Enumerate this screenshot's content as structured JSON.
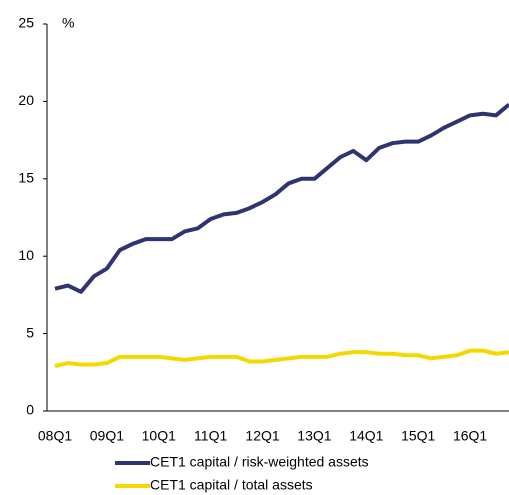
{
  "chart_data": {
    "type": "line",
    "unit": "%",
    "categories": [
      "08Q1",
      null,
      null,
      null,
      "09Q1",
      null,
      null,
      null,
      "10Q1",
      null,
      null,
      null,
      "11Q1",
      null,
      null,
      null,
      "12Q1",
      null,
      null,
      null,
      "13Q1",
      null,
      null,
      null,
      "14Q1",
      null,
      null,
      null,
      "15Q1",
      null,
      null,
      null,
      "16Q1",
      null,
      null,
      null
    ],
    "series": [
      {
        "name": "CET1 capital / risk-weighted assets",
        "color": "#2e3470",
        "values": [
          7.9,
          8.1,
          7.7,
          8.7,
          9.2,
          10.4,
          10.8,
          11.1,
          11.1,
          11.1,
          11.6,
          11.8,
          12.4,
          12.7,
          12.8,
          13.1,
          13.5,
          14.0,
          14.7,
          15.0,
          15.0,
          15.7,
          16.4,
          16.8,
          16.2,
          17.0,
          17.3,
          17.4,
          17.4,
          17.8,
          18.3,
          18.7,
          19.1,
          19.2,
          19.1,
          19.8
        ]
      },
      {
        "name": "CET1 capital / total assets",
        "color": "#f5d800",
        "values": [
          2.9,
          3.1,
          3.0,
          3.0,
          3.1,
          3.5,
          3.5,
          3.5,
          3.5,
          3.4,
          3.3,
          3.4,
          3.5,
          3.5,
          3.5,
          3.2,
          3.2,
          3.3,
          3.4,
          3.5,
          3.5,
          3.5,
          3.7,
          3.8,
          3.8,
          3.7,
          3.7,
          3.6,
          3.6,
          3.4,
          3.5,
          3.6,
          3.9,
          3.9,
          3.7,
          3.8
        ]
      }
    ],
    "ylim": [
      0,
      25
    ],
    "yticks": [
      0,
      5,
      10,
      15,
      20,
      25
    ],
    "grid": false
  }
}
